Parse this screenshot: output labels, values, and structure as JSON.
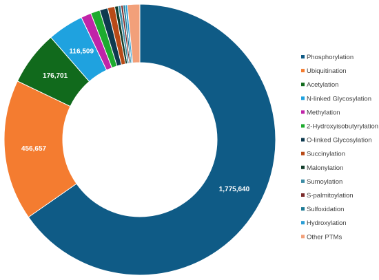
{
  "chart_data": {
    "type": "pie",
    "variant": "donut",
    "title": "",
    "legend_position": "right",
    "grid": false,
    "series": [
      {
        "name": "",
        "slices": [
          {
            "label": "Phosphorylation",
            "value": 1775640,
            "color": "#0F5B86",
            "data_label": "1,775,640"
          },
          {
            "label": "Ubiquitination",
            "value": 456657,
            "color": "#F47C30",
            "data_label": "456,657"
          },
          {
            "label": "Acetylation",
            "value": 176701,
            "color": "#116A1C",
            "data_label": "176,701"
          },
          {
            "label": "N-linked Glycosylation",
            "value": 116509,
            "color": "#1FA2DF",
            "data_label": "116,509"
          },
          {
            "label": "Methylation",
            "value": 33000,
            "color": "#C024A8",
            "data_label": ""
          },
          {
            "label": "2-Hydroxyisobutyrylation",
            "value": 30000,
            "color": "#1DAB2E",
            "data_label": ""
          },
          {
            "label": "O-linked Glycosylation",
            "value": 26000,
            "color": "#0E3A4F",
            "data_label": ""
          },
          {
            "label": "Succinylation",
            "value": 23000,
            "color": "#B84A17",
            "data_label": ""
          },
          {
            "label": "Malonylation",
            "value": 11000,
            "color": "#123D2A",
            "data_label": ""
          },
          {
            "label": "Sumoylation",
            "value": 9000,
            "color": "#3C8CA5",
            "data_label": ""
          },
          {
            "label": "S-palmitoylation",
            "value": 7000,
            "color": "#7A2A2A",
            "data_label": ""
          },
          {
            "label": "Sulfoxidation",
            "value": 7000,
            "color": "#1D7A95",
            "data_label": ""
          },
          {
            "label": "Hydroxylation",
            "value": 7000,
            "color": "#2C9ED6",
            "data_label": ""
          },
          {
            "label": "Other PTMs",
            "value": 40000,
            "color": "#F2A07A",
            "data_label": ""
          }
        ]
      }
    ]
  }
}
